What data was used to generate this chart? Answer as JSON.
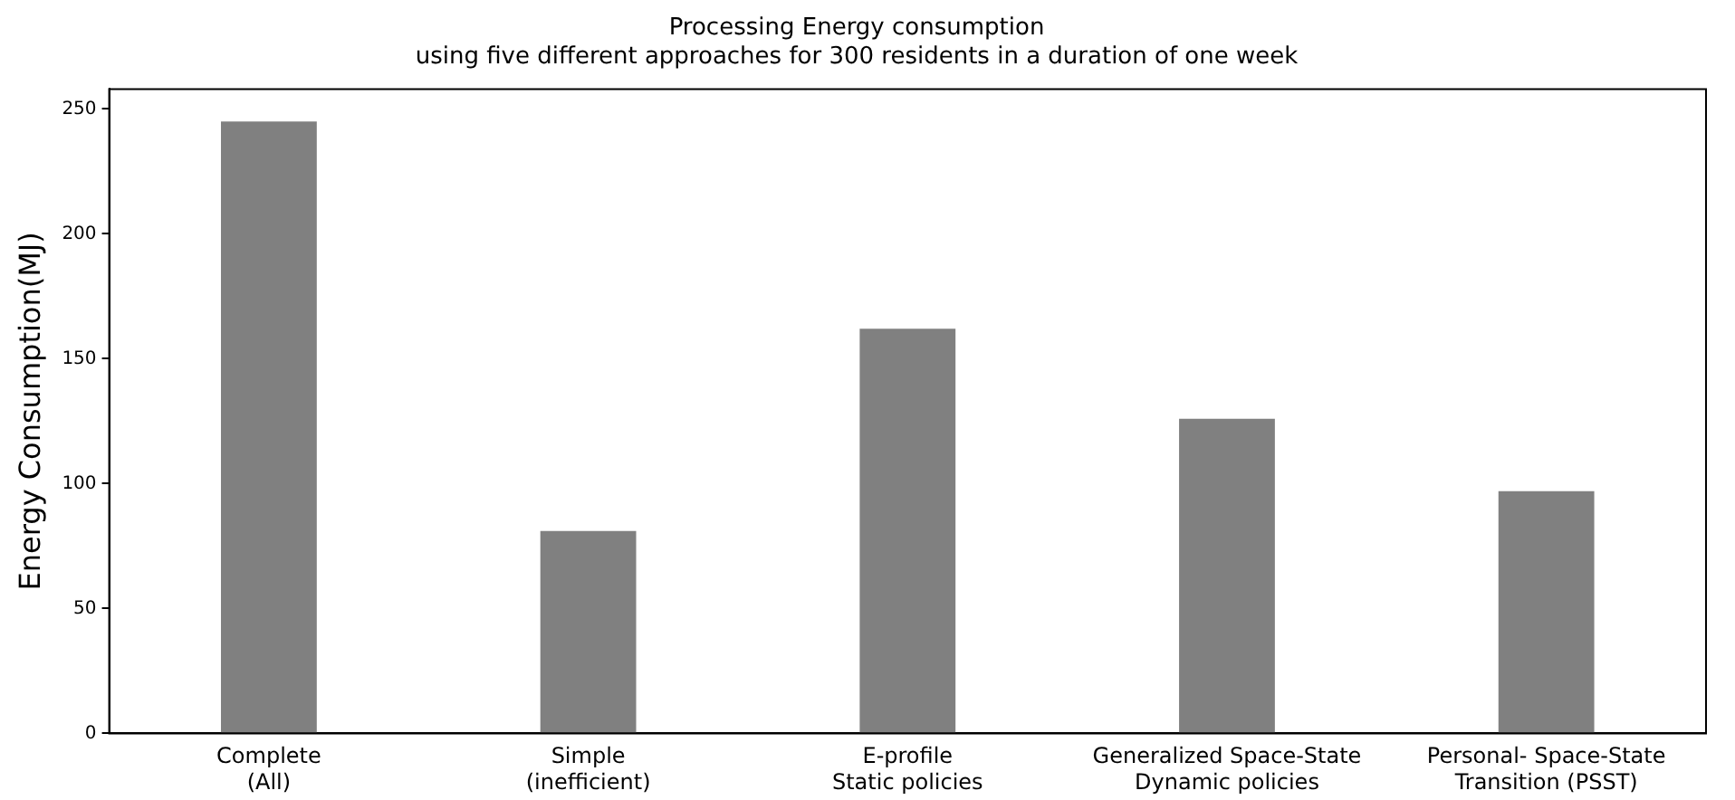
{
  "chart_data": {
    "type": "bar",
    "title": "Processing Energy consumption",
    "subtitle": "using five different approaches for 300 residents in a duration of one week",
    "ylabel": "Energy Consumption(MJ)",
    "categories": [
      "Complete\n(All)",
      "Simple\n(inefficient)",
      "E-profile\nStatic policies",
      "Generalized Space-State\nDynamic policies",
      "Personal- Space-State\nTransition (PSST)"
    ],
    "values": [
      245,
      81,
      162,
      126,
      97
    ],
    "color": "#808080",
    "ylim": [
      0,
      258
    ],
    "yticks": [
      0,
      50,
      100,
      150,
      200,
      250
    ],
    "grid": false,
    "legend": false
  }
}
